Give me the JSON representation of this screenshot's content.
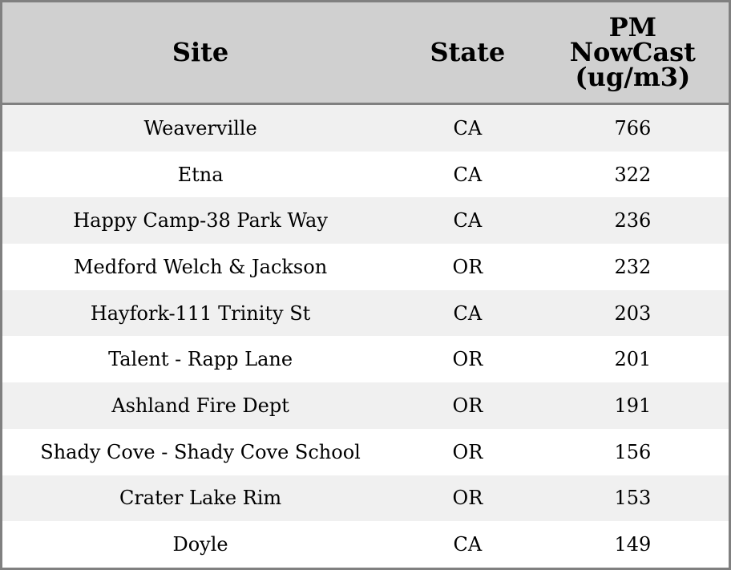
{
  "table": {
    "headers": {
      "site": "Site",
      "state": "State",
      "pm_line1": "PM",
      "pm_line2": "NowCast",
      "pm_line3": "(ug/m3)"
    },
    "rows": [
      {
        "site": "Weaverville",
        "state": "CA",
        "pm": "766"
      },
      {
        "site": "Etna",
        "state": "CA",
        "pm": "322"
      },
      {
        "site": "Happy Camp-38 Park Way",
        "state": "CA",
        "pm": "236"
      },
      {
        "site": "Medford Welch & Jackson",
        "state": "OR",
        "pm": "232"
      },
      {
        "site": "Hayfork-111 Trinity St",
        "state": "CA",
        "pm": "203"
      },
      {
        "site": "Talent - Rapp Lane",
        "state": "OR",
        "pm": "201"
      },
      {
        "site": "Ashland Fire Dept",
        "state": "OR",
        "pm": "191"
      },
      {
        "site": "Shady Cove - Shady Cove School",
        "state": "OR",
        "pm": "156"
      },
      {
        "site": "Crater Lake Rim",
        "state": "OR",
        "pm": "153"
      },
      {
        "site": "Doyle",
        "state": "CA",
        "pm": "149"
      }
    ]
  },
  "colors": {
    "header_bg": "#d0d0d0",
    "stripe": "#f0f0f0",
    "border": "#808080"
  }
}
